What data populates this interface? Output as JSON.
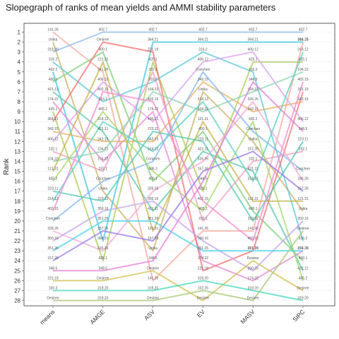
{
  "chart_data": {
    "type": "line",
    "title": "Slopegraph of ranks of mean yields and AMMI stability parameters",
    "ylabel": "Rank",
    "xlabel": "",
    "categories": [
      "means",
      "AMGE",
      "ASV",
      "EV",
      "MASV",
      "SIPC"
    ],
    "ylim": [
      1,
      28
    ],
    "y_reversed": true,
    "grid": true,
    "legend": "none",
    "y_ticks": [
      1,
      2,
      3,
      4,
      5,
      6,
      7,
      8,
      9,
      10,
      11,
      12,
      13,
      14,
      15,
      16,
      17,
      18,
      19,
      20,
      21,
      22,
      23,
      24,
      25,
      26,
      27,
      28
    ],
    "series": [
      {
        "values": [
          1,
          5,
          26,
          21,
          21,
          2
        ],
        "labels": [
          "141.26",
          "141.26",
          "141.26",
          "141.26",
          "141.26",
          "141.26"
        ],
        "color": "#f4a9a0"
      },
      {
        "values": [
          2,
          17,
          23,
          7,
          12,
          19
        ],
        "labels": [
          "Unika",
          "Unika",
          "Unika",
          "Unika",
          "Unika",
          "Unika"
        ],
        "color": "#c9b26a"
      },
      {
        "values": [
          3,
          1,
          1,
          1,
          1,
          1
        ],
        "labels": [
          "319.20",
          "402.7",
          "402.7",
          "402.7",
          "402.7",
          "402.7"
        ],
        "color": "#8fb8f0"
      },
      {
        "values": [
          4,
          8,
          6,
          3,
          5,
          22
        ],
        "labels": [
          "316.2",
          "316.2",
          "316.2",
          "316.2",
          "316.2",
          "316.2"
        ],
        "color": "#5cc8d8"
      },
      {
        "values": [
          5,
          22,
          2,
          2,
          2,
          2
        ],
        "labels": [
          "402.2",
          "364.21",
          "364.21",
          "364.21",
          "364.21",
          "364.21"
        ],
        "color": "#3fc7e0"
      },
      {
        "values": [
          6,
          3,
          16,
          11,
          19,
          24
        ],
        "labels": [
          "400.1",
          "400.1",
          "400.1",
          "400.1",
          "400.1",
          "400.1"
        ],
        "color": "#7ccf7a"
      },
      {
        "values": [
          7,
          11,
          19,
          13,
          15,
          25
        ],
        "labels": [
          "421.11",
          "421.11",
          "421.11",
          "421.11",
          "421.11",
          "421.11"
        ],
        "color": "#58c9a8"
      },
      {
        "values": [
          8,
          14,
          9,
          24,
          26,
          23
        ],
        "labels": [
          "174.22",
          "174.22",
          "174.22",
          "174.22",
          "174.22",
          "174.22"
        ],
        "color": "#e58ad6"
      },
      {
        "values": [
          9,
          24,
          4,
          17,
          4,
          4
        ],
        "labels": [
          "425.1",
          "425.1",
          "425.1",
          "425.1",
          "425.1",
          "425.1"
        ],
        "color": "#a9cb57"
      },
      {
        "values": [
          10,
          2,
          3,
          25,
          23,
          7
        ],
        "labels": [
          "364.21",
          "Desiree",
          "221.19",
          "221.19",
          "221.19",
          "221.19"
        ],
        "color": "#f07070"
      },
      {
        "values": [
          11,
          12,
          12,
          6,
          9,
          8
        ],
        "labels": [
          "342.15",
          "342.15",
          "342.15",
          "342.15",
          "342.15",
          "342.15"
        ],
        "color": "#e8b060"
      },
      {
        "values": [
          12,
          6,
          10,
          4,
          3,
          10
        ],
        "labels": [
          "406.12",
          "406.12",
          "406.12",
          "406.12",
          "406.12",
          "406.12"
        ],
        "color": "#d9a2ef"
      },
      {
        "values": [
          13,
          15,
          5,
          20,
          14,
          13
        ],
        "labels": [
          "232.1",
          "232.1",
          "232.1",
          "232.1",
          "232.1",
          "232.1"
        ],
        "color": "#ef9fc4"
      },
      {
        "values": [
          14,
          13,
          7,
          9,
          7,
          5
        ],
        "labels": [
          "104.22",
          "104.22",
          "104.22",
          "104.22",
          "104.22",
          "104.22"
        ],
        "color": "#8bd6b0"
      },
      {
        "values": [
          15,
          4,
          21,
          10,
          18,
          18
        ],
        "labels": [
          "121.31",
          "121.31",
          "121.31",
          "121.31",
          "121.31",
          "121.31"
        ],
        "color": "#c6b34e"
      },
      {
        "values": [
          16,
          9,
          15,
          19,
          10,
          26
        ],
        "labels": [
          "405.2",
          "405.2",
          "405.2",
          "405.2",
          "405.2",
          "405.2"
        ],
        "color": "#a6d86a"
      },
      {
        "values": [
          17,
          18,
          11,
          12,
          20,
          12
        ],
        "labels": [
          "223.11",
          "223.11",
          "223.11",
          "223.11",
          "223.11",
          "223.11"
        ],
        "color": "#4ec9b0"
      },
      {
        "values": [
          18,
          10,
          13,
          8,
          16,
          3
        ],
        "labels": [
          "314.12",
          "314.12",
          "314.12",
          "314.12",
          "314.12",
          "314.12"
        ],
        "color": "#5dd0c0"
      },
      {
        "values": [
          19,
          7,
          8,
          18,
          22,
          6
        ],
        "labels": [
          "402.15",
          "402.15",
          "402.15",
          "402.15",
          "402.15",
          "402.15"
        ],
        "color": "#f28ad0"
      },
      {
        "values": [
          20,
          16,
          14,
          5,
          11,
          15
        ],
        "labels": [
          "Conchen",
          "Conchen",
          "Conchen",
          "Conchen",
          "Conchen",
          "Conchen"
        ],
        "color": "#80b8f0"
      },
      {
        "values": [
          21,
          23,
          17,
          14,
          8,
          16
        ],
        "labels": [
          "326.26",
          "326.26",
          "326.26",
          "326.26",
          "326.26",
          "326.26"
        ],
        "color": "#f7a8d8"
      },
      {
        "values": [
          22,
          19,
          18,
          22,
          25,
          20
        ],
        "labels": [
          "350.16",
          "350.16",
          "350.16",
          "350.16",
          "350.16",
          "350.16"
        ],
        "color": "#c4a4ee"
      },
      {
        "values": [
          23,
          20,
          20,
          23,
          23,
          23
        ],
        "labels": [
          "351.26",
          "351.26",
          "351.26",
          "351.26",
          "351.26",
          "351.26"
        ],
        "color": "#4ad2ea"
      },
      {
        "values": [
          24,
          21,
          22,
          15,
          13,
          17
        ],
        "labels": [
          "157.26",
          "157.26",
          "157.26",
          "157.26",
          "157.26",
          "157.26"
        ],
        "color": "#9a78e8"
      },
      {
        "values": [
          25,
          25,
          24,
          16,
          6,
          11
        ],
        "labels": [
          "348.5",
          "348.5",
          "348.5",
          "348.5",
          "348.5",
          "348.5"
        ],
        "color": "#e27fd8"
      },
      {
        "values": [
          26,
          26,
          25,
          28,
          24,
          27
        ],
        "labels": [
          "221.19",
          "Desiree",
          "Desiree",
          "Desiree",
          "Desiree",
          "Desiree"
        ],
        "color": "#d4c050"
      },
      {
        "values": [
          27,
          27,
          27,
          26,
          27,
          28
        ],
        "labels": [
          "160.3",
          "319.20",
          "319.20",
          "319.20",
          "319.20",
          "319.20"
        ],
        "color": "#46d8bd"
      },
      {
        "values": [
          28,
          28,
          28,
          27,
          28,
          21
        ],
        "labels": [
          "Desiree",
          "319.20",
          "Desiree",
          "102.26",
          "Desiree",
          "Desiree"
        ],
        "color": "#a8c878"
      }
    ]
  }
}
